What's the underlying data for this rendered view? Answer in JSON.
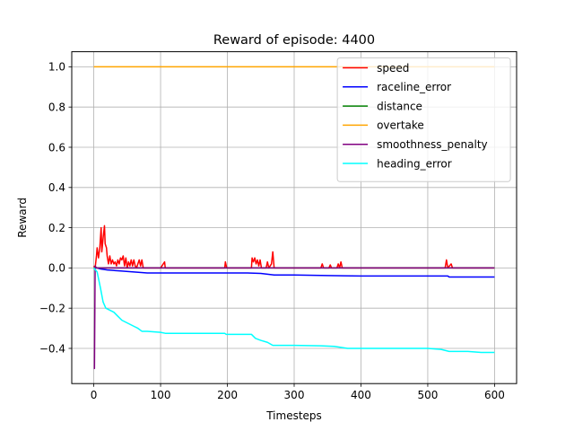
{
  "chart_data": {
    "type": "line",
    "title": "Reward of episode: 4400",
    "xlabel": "Timesteps",
    "ylabel": "Reward",
    "xlim": [
      -33,
      633
    ],
    "ylim": [
      -0.575,
      1.075
    ],
    "xticks": [
      0,
      100,
      200,
      300,
      400,
      500,
      600
    ],
    "yticks": [
      -0.4,
      -0.2,
      0.0,
      0.2,
      0.4,
      0.6,
      0.8,
      1.0
    ],
    "xtick_labels": [
      "0",
      "100",
      "200",
      "300",
      "400",
      "500",
      "600"
    ],
    "ytick_labels": [
      "−0.4",
      "−0.2",
      "0.0",
      "0.2",
      "0.4",
      "0.6",
      "0.8",
      "1.0"
    ],
    "grid": true,
    "legend_position": "top-right",
    "series": [
      {
        "name": "speed",
        "color": "#ff0000",
        "points": [
          [
            0,
            0.01
          ],
          [
            2,
            0.0
          ],
          [
            4,
            0.06
          ],
          [
            5,
            0.1
          ],
          [
            7,
            0.05
          ],
          [
            9,
            0.1
          ],
          [
            11,
            0.2
          ],
          [
            12,
            0.08
          ],
          [
            14,
            0.15
          ],
          [
            16,
            0.21
          ],
          [
            17,
            0.12
          ],
          [
            19,
            0.1
          ],
          [
            20,
            0.06
          ],
          [
            22,
            0.02
          ],
          [
            24,
            0.06
          ],
          [
            26,
            0.02
          ],
          [
            28,
            0.04
          ],
          [
            30,
            0.02
          ],
          [
            32,
            0.03
          ],
          [
            34,
            0.01
          ],
          [
            36,
            0.04
          ],
          [
            38,
            0.02
          ],
          [
            40,
            0.05
          ],
          [
            42,
            0.04
          ],
          [
            44,
            0.06
          ],
          [
            46,
            0.01
          ],
          [
            48,
            0.05
          ],
          [
            50,
            0.0
          ],
          [
            52,
            0.03
          ],
          [
            54,
            0.01
          ],
          [
            56,
            0.04
          ],
          [
            58,
            0.01
          ],
          [
            60,
            0.04
          ],
          [
            62,
            0.01
          ],
          [
            64,
            0.0
          ],
          [
            66,
            0.02
          ],
          [
            68,
            0.04
          ],
          [
            70,
            0.01
          ],
          [
            72,
            0.04
          ],
          [
            74,
            0.0
          ],
          [
            100,
            0.0
          ],
          [
            106,
            0.03
          ],
          [
            107,
            0.0
          ],
          [
            196,
            0.0
          ],
          [
            197,
            0.03
          ],
          [
            199,
            0.0
          ],
          [
            236,
            0.0
          ],
          [
            237,
            0.05
          ],
          [
            239,
            0.03
          ],
          [
            241,
            0.05
          ],
          [
            243,
            0.02
          ],
          [
            245,
            0.04
          ],
          [
            247,
            0.01
          ],
          [
            249,
            0.04
          ],
          [
            251,
            0.0
          ],
          [
            258,
            0.0
          ],
          [
            260,
            0.03
          ],
          [
            262,
            0.0
          ],
          [
            266,
            0.02
          ],
          [
            268,
            0.08
          ],
          [
            270,
            0.0
          ],
          [
            340,
            0.0
          ],
          [
            342,
            0.02
          ],
          [
            344,
            0.0
          ],
          [
            352,
            0.0
          ],
          [
            354,
            0.015
          ],
          [
            356,
            0.0
          ],
          [
            364,
            0.0
          ],
          [
            366,
            0.02
          ],
          [
            368,
            0.0
          ],
          [
            370,
            0.03
          ],
          [
            372,
            0.0
          ],
          [
            526,
            0.0
          ],
          [
            528,
            0.04
          ],
          [
            530,
            0.0
          ],
          [
            535,
            0.02
          ],
          [
            537,
            0.0
          ],
          [
            600,
            0.0
          ]
        ]
      },
      {
        "name": "raceline_error",
        "color": "#0000ff",
        "points": [
          [
            0,
            0.0
          ],
          [
            5,
            0.0
          ],
          [
            10,
            -0.005
          ],
          [
            20,
            -0.01
          ],
          [
            40,
            -0.015
          ],
          [
            60,
            -0.02
          ],
          [
            80,
            -0.025
          ],
          [
            100,
            -0.025
          ],
          [
            150,
            -0.025
          ],
          [
            200,
            -0.025
          ],
          [
            230,
            -0.025
          ],
          [
            250,
            -0.027
          ],
          [
            270,
            -0.035
          ],
          [
            300,
            -0.035
          ],
          [
            350,
            -0.038
          ],
          [
            400,
            -0.04
          ],
          [
            500,
            -0.04
          ],
          [
            530,
            -0.04
          ],
          [
            532,
            -0.045
          ],
          [
            600,
            -0.045
          ]
        ]
      },
      {
        "name": "distance",
        "color": "#008000",
        "points": [
          [
            0,
            0.0
          ],
          [
            600,
            0.0
          ]
        ]
      },
      {
        "name": "overtake",
        "color": "#ffa500",
        "points": [
          [
            0,
            1.0
          ],
          [
            600,
            1.0
          ]
        ]
      },
      {
        "name": "smoothness_penalty",
        "color": "#800080",
        "points": [
          [
            0,
            -0.5
          ],
          [
            1,
            -0.5
          ],
          [
            2,
            0.01
          ],
          [
            4,
            0.0
          ],
          [
            600,
            0.0
          ]
        ]
      },
      {
        "name": "heading_error",
        "color": "#00ffff",
        "points": [
          [
            0,
            0.0
          ],
          [
            5,
            -0.02
          ],
          [
            10,
            -0.1
          ],
          [
            14,
            -0.17
          ],
          [
            18,
            -0.2
          ],
          [
            24,
            -0.21
          ],
          [
            30,
            -0.22
          ],
          [
            36,
            -0.24
          ],
          [
            42,
            -0.26
          ],
          [
            48,
            -0.27
          ],
          [
            54,
            -0.28
          ],
          [
            60,
            -0.29
          ],
          [
            66,
            -0.3
          ],
          [
            72,
            -0.315
          ],
          [
            80,
            -0.315
          ],
          [
            100,
            -0.32
          ],
          [
            107,
            -0.325
          ],
          [
            150,
            -0.325
          ],
          [
            196,
            -0.325
          ],
          [
            198,
            -0.33
          ],
          [
            236,
            -0.33
          ],
          [
            242,
            -0.35
          ],
          [
            250,
            -0.36
          ],
          [
            260,
            -0.37
          ],
          [
            268,
            -0.385
          ],
          [
            300,
            -0.385
          ],
          [
            340,
            -0.387
          ],
          [
            360,
            -0.39
          ],
          [
            370,
            -0.395
          ],
          [
            380,
            -0.4
          ],
          [
            450,
            -0.4
          ],
          [
            500,
            -0.4
          ],
          [
            520,
            -0.405
          ],
          [
            526,
            -0.41
          ],
          [
            532,
            -0.415
          ],
          [
            560,
            -0.415
          ],
          [
            580,
            -0.42
          ],
          [
            600,
            -0.42
          ]
        ]
      }
    ]
  }
}
